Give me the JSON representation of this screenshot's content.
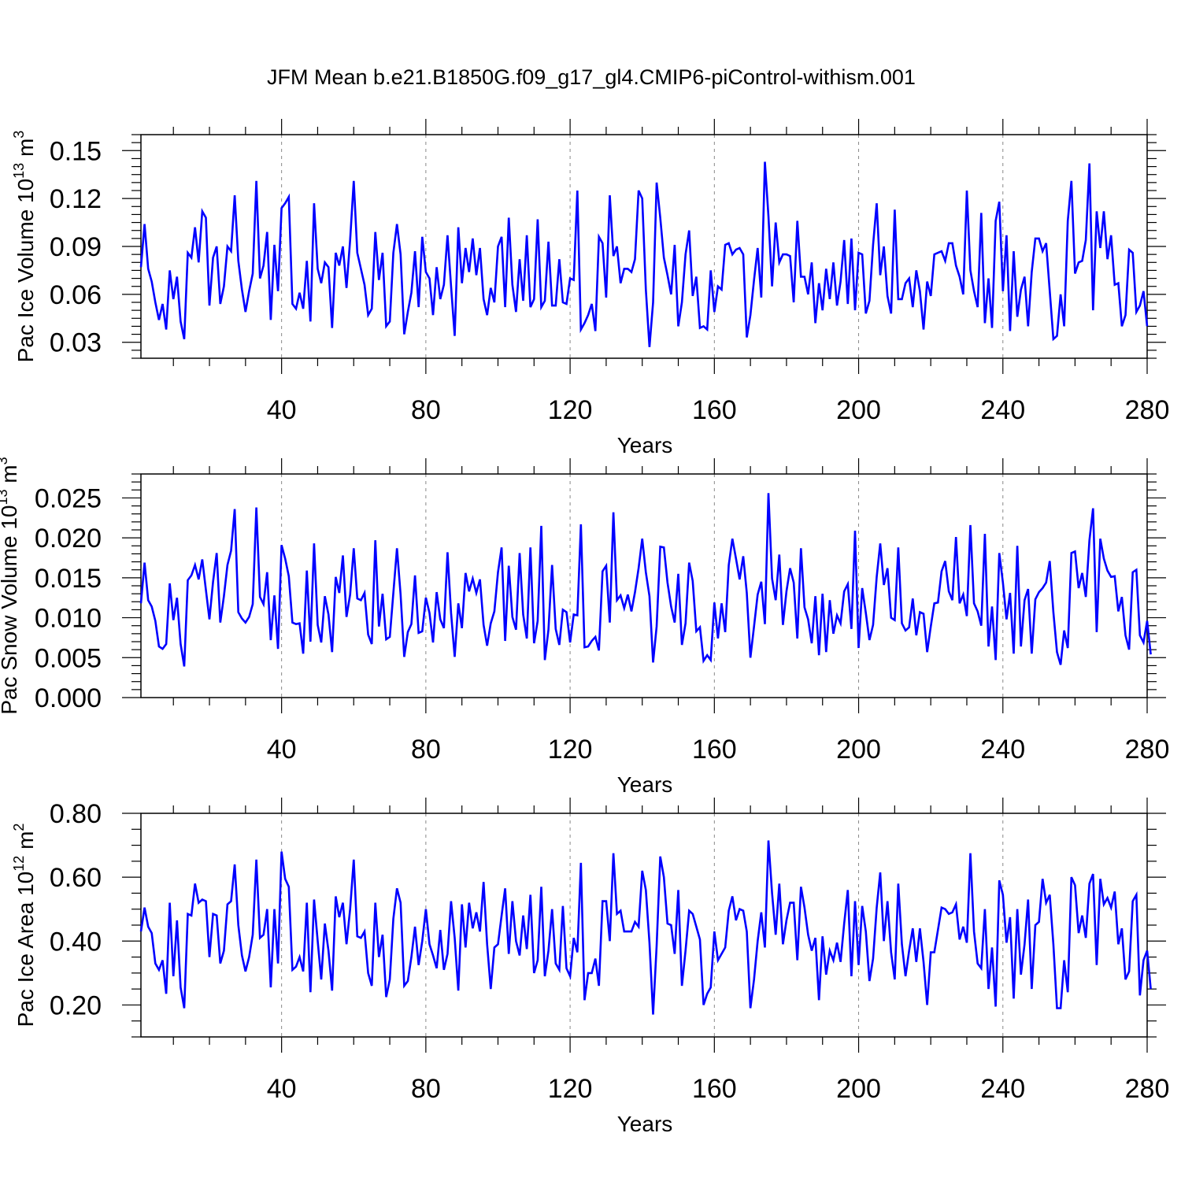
{
  "figure": {
    "title": "JFM Mean b.e21.B1850G.f09_g17_gl4.CMIP6-piControl-withism.001"
  },
  "chart_data": [
    {
      "type": "line",
      "xlabel": "Years",
      "ylabel": {
        "main": "Pac Ice Volume 10",
        "exp": "13",
        "unit": " m",
        "unit_exp": "3"
      },
      "xlim": [
        1,
        280
      ],
      "ylim": [
        0.02,
        0.16
      ],
      "xticks": [
        "40",
        "80",
        "120",
        "160",
        "200",
        "240",
        "280"
      ],
      "yticks": [
        "0.03",
        "0.06",
        "0.09",
        "0.12",
        "0.15"
      ],
      "grid": "dashed vertical lines at major x ticks",
      "line_color": "#0000ff",
      "series": [
        {
          "values": [
            0.077,
            0.104,
            0.076,
            0.068,
            0.055,
            0.044,
            0.054,
            0.038,
            0.075,
            0.057,
            0.071,
            0.043,
            0.032,
            0.086,
            0.083,
            0.102,
            0.08,
            0.112,
            0.108,
            0.053,
            0.083,
            0.09,
            0.054,
            0.065,
            0.09,
            0.087,
            0.122,
            0.081,
            0.063,
            0.049,
            0.062,
            0.073,
            0.131,
            0.07,
            0.078,
            0.099,
            0.044,
            0.091,
            0.062,
            0.114,
            0.117,
            0.121,
            0.054,
            0.051,
            0.061,
            0.051,
            0.081,
            0.043,
            0.117,
            0.076,
            0.067,
            0.08,
            0.077,
            0.039,
            0.086,
            0.078,
            0.09,
            0.064,
            0.094,
            0.131,
            0.086,
            0.076,
            0.066,
            0.047,
            0.051,
            0.099,
            0.069,
            0.086,
            0.04,
            0.043,
            0.086,
            0.104,
            0.085,
            0.035,
            0.049,
            0.061,
            0.087,
            0.052,
            0.096,
            0.074,
            0.07,
            0.047,
            0.077,
            0.057,
            0.066,
            0.097,
            0.065,
            0.034,
            0.102,
            0.067,
            0.089,
            0.074,
            0.095,
            0.072,
            0.089,
            0.057,
            0.047,
            0.064,
            0.055,
            0.09,
            0.096,
            0.052,
            0.108,
            0.066,
            0.049,
            0.082,
            0.056,
            0.097,
            0.052,
            0.057,
            0.107,
            0.052,
            0.056,
            0.093,
            0.053,
            0.053,
            0.082,
            0.055,
            0.054,
            0.07,
            0.069,
            0.125,
            0.038,
            0.042,
            0.047,
            0.054,
            0.037,
            0.096,
            0.092,
            0.058,
            0.122,
            0.084,
            0.09,
            0.067,
            0.076,
            0.076,
            0.074,
            0.082,
            0.125,
            0.12,
            0.063,
            0.027,
            0.055,
            0.13,
            0.108,
            0.083,
            0.072,
            0.06,
            0.091,
            0.04,
            0.055,
            0.085,
            0.1,
            0.059,
            0.071,
            0.039,
            0.04,
            0.038,
            0.075,
            0.049,
            0.065,
            0.063,
            0.091,
            0.092,
            0.085,
            0.088,
            0.089,
            0.085,
            0.033,
            0.047,
            0.069,
            0.089,
            0.058,
            0.143,
            0.109,
            0.065,
            0.105,
            0.08,
            0.085,
            0.085,
            0.084,
            0.055,
            0.106,
            0.071,
            0.071,
            0.06,
            0.08,
            0.042,
            0.067,
            0.05,
            0.076,
            0.057,
            0.08,
            0.053,
            0.068,
            0.094,
            0.054,
            0.095,
            0.05,
            0.086,
            0.085,
            0.048,
            0.056,
            0.091,
            0.117,
            0.072,
            0.09,
            0.059,
            0.048,
            0.113,
            0.057,
            0.057,
            0.067,
            0.07,
            0.052,
            0.075,
            0.062,
            0.038,
            0.068,
            0.059,
            0.085,
            0.086,
            0.087,
            0.081,
            0.092,
            0.092,
            0.078,
            0.071,
            0.06,
            0.125,
            0.075,
            0.062,
            0.052,
            0.111,
            0.042,
            0.07,
            0.039,
            0.106,
            0.118,
            0.062,
            0.097,
            0.037,
            0.087,
            0.046,
            0.063,
            0.071,
            0.04,
            0.074,
            0.095,
            0.095,
            0.087,
            0.092,
            0.062,
            0.032,
            0.034,
            0.06,
            0.04,
            0.106,
            0.131,
            0.073,
            0.08,
            0.081,
            0.094,
            0.142,
            0.05,
            0.112,
            0.089,
            0.112,
            0.082,
            0.097,
            0.066,
            0.067,
            0.04,
            0.047,
            0.088,
            0.086,
            0.049,
            0.053,
            0.062,
            0.04
          ]
        }
      ]
    },
    {
      "type": "line",
      "xlabel": "Years",
      "ylabel": {
        "main": "Pac Snow Volume 10",
        "exp": "13",
        "unit": " m",
        "unit_exp": "3"
      },
      "xlim": [
        1,
        280
      ],
      "ylim": [
        0.0,
        0.028
      ],
      "xticks": [
        "40",
        "80",
        "120",
        "160",
        "200",
        "240",
        "280"
      ],
      "yticks": [
        "0.000",
        "0.005",
        "0.010",
        "0.015",
        "0.020",
        "0.025"
      ],
      "grid": "dashed vertical lines at major x ticks",
      "line_color": "#0000ff",
      "series": [
        {
          "values": [
            0.0118,
            0.0169,
            0.0122,
            0.0114,
            0.0096,
            0.0064,
            0.0061,
            0.0067,
            0.0143,
            0.0097,
            0.0125,
            0.0067,
            0.0039,
            0.0147,
            0.0153,
            0.0166,
            0.0148,
            0.0173,
            0.0135,
            0.0098,
            0.0145,
            0.0181,
            0.0094,
            0.0127,
            0.0166,
            0.0184,
            0.0236,
            0.0107,
            0.0099,
            0.0094,
            0.0101,
            0.0117,
            0.0238,
            0.0126,
            0.0117,
            0.0157,
            0.0072,
            0.0128,
            0.0061,
            0.0191,
            0.0174,
            0.0152,
            0.0094,
            0.0092,
            0.0093,
            0.0055,
            0.0159,
            0.007,
            0.0193,
            0.0091,
            0.0069,
            0.0127,
            0.0104,
            0.0057,
            0.0151,
            0.0131,
            0.0178,
            0.0101,
            0.0129,
            0.0187,
            0.0124,
            0.0122,
            0.0131,
            0.0079,
            0.0067,
            0.0197,
            0.0089,
            0.013,
            0.0073,
            0.0076,
            0.0131,
            0.0187,
            0.0129,
            0.0051,
            0.0082,
            0.0092,
            0.0153,
            0.0081,
            0.0083,
            0.0125,
            0.0106,
            0.0069,
            0.0132,
            0.0098,
            0.0087,
            0.0182,
            0.0106,
            0.0051,
            0.0118,
            0.0087,
            0.0156,
            0.0133,
            0.0149,
            0.0131,
            0.0148,
            0.0091,
            0.0065,
            0.0093,
            0.0108,
            0.0157,
            0.0188,
            0.0071,
            0.0165,
            0.0101,
            0.0085,
            0.0181,
            0.0104,
            0.0074,
            0.0188,
            0.0068,
            0.0096,
            0.0215,
            0.0047,
            0.0085,
            0.0166,
            0.0086,
            0.0066,
            0.011,
            0.0107,
            0.0069,
            0.0104,
            0.0103,
            0.0217,
            0.0063,
            0.0064,
            0.0071,
            0.0076,
            0.0059,
            0.0158,
            0.0165,
            0.0094,
            0.0232,
            0.0122,
            0.0128,
            0.0112,
            0.0129,
            0.0108,
            0.0132,
            0.0162,
            0.0199,
            0.0157,
            0.0127,
            0.0044,
            0.0089,
            0.0189,
            0.0188,
            0.0144,
            0.0114,
            0.0094,
            0.0155,
            0.0066,
            0.0093,
            0.0169,
            0.0146,
            0.0083,
            0.0088,
            0.0046,
            0.0053,
            0.0047,
            0.0119,
            0.0074,
            0.0118,
            0.0082,
            0.0166,
            0.0199,
            0.0174,
            0.0148,
            0.0177,
            0.0131,
            0.005,
            0.0089,
            0.0129,
            0.0145,
            0.0092,
            0.0256,
            0.0149,
            0.0122,
            0.0179,
            0.0091,
            0.0133,
            0.0162,
            0.0144,
            0.0074,
            0.0187,
            0.0113,
            0.0098,
            0.0068,
            0.0127,
            0.0053,
            0.013,
            0.0057,
            0.0122,
            0.008,
            0.0103,
            0.0093,
            0.0133,
            0.0142,
            0.0086,
            0.0209,
            0.0062,
            0.0137,
            0.0106,
            0.0072,
            0.0091,
            0.0151,
            0.0193,
            0.0141,
            0.0162,
            0.01,
            0.0097,
            0.0188,
            0.0093,
            0.0084,
            0.0088,
            0.0124,
            0.0078,
            0.0107,
            0.0105,
            0.0057,
            0.0089,
            0.0118,
            0.0119,
            0.0158,
            0.0171,
            0.0133,
            0.0122,
            0.0201,
            0.0118,
            0.0129,
            0.0102,
            0.0216,
            0.0118,
            0.0108,
            0.009,
            0.0205,
            0.0064,
            0.0114,
            0.0047,
            0.0181,
            0.0144,
            0.0098,
            0.0131,
            0.0055,
            0.019,
            0.0064,
            0.0122,
            0.0136,
            0.0055,
            0.0123,
            0.0132,
            0.0137,
            0.0144,
            0.0171,
            0.0107,
            0.0057,
            0.0041,
            0.0084,
            0.0062,
            0.0181,
            0.0183,
            0.0137,
            0.0156,
            0.0126,
            0.0197,
            0.0237,
            0.0082,
            0.0199,
            0.0174,
            0.0159,
            0.0151,
            0.0152,
            0.0108,
            0.0126,
            0.0078,
            0.006,
            0.0157,
            0.016,
            0.0078,
            0.0069,
            0.0096,
            0.0054
          ]
        }
      ]
    },
    {
      "type": "line",
      "xlabel": "Years",
      "ylabel": {
        "main": "Pac Ice Area 10",
        "exp": "12",
        "unit": " m",
        "unit_exp": "2"
      },
      "xlim": [
        1,
        280
      ],
      "ylim": [
        0.1,
        0.8
      ],
      "xticks": [
        "40",
        "80",
        "120",
        "160",
        "200",
        "240",
        "280"
      ],
      "yticks": [
        "0.20",
        "0.40",
        "0.60",
        "0.80"
      ],
      "grid": "dashed vertical lines at major x ticks",
      "line_color": "#0000ff",
      "series": [
        {
          "values": [
            0.43,
            0.505,
            0.445,
            0.425,
            0.33,
            0.31,
            0.34,
            0.235,
            0.52,
            0.29,
            0.465,
            0.255,
            0.19,
            0.485,
            0.48,
            0.58,
            0.52,
            0.53,
            0.525,
            0.35,
            0.485,
            0.48,
            0.33,
            0.37,
            0.515,
            0.525,
            0.64,
            0.45,
            0.355,
            0.305,
            0.35,
            0.42,
            0.655,
            0.41,
            0.42,
            0.5,
            0.255,
            0.5,
            0.33,
            0.68,
            0.595,
            0.57,
            0.31,
            0.32,
            0.35,
            0.305,
            0.52,
            0.24,
            0.53,
            0.4,
            0.28,
            0.455,
            0.37,
            0.245,
            0.54,
            0.475,
            0.52,
            0.39,
            0.5,
            0.655,
            0.415,
            0.41,
            0.43,
            0.3,
            0.26,
            0.52,
            0.35,
            0.42,
            0.225,
            0.28,
            0.47,
            0.565,
            0.52,
            0.26,
            0.275,
            0.35,
            0.445,
            0.325,
            0.4,
            0.5,
            0.39,
            0.355,
            0.315,
            0.435,
            0.31,
            0.36,
            0.525,
            0.41,
            0.245,
            0.515,
            0.38,
            0.52,
            0.44,
            0.49,
            0.43,
            0.585,
            0.39,
            0.25,
            0.38,
            0.39,
            0.48,
            0.565,
            0.36,
            0.525,
            0.4,
            0.355,
            0.48,
            0.375,
            0.545,
            0.3,
            0.34,
            0.57,
            0.29,
            0.37,
            0.5,
            0.33,
            0.31,
            0.51,
            0.315,
            0.29,
            0.41,
            0.365,
            0.645,
            0.215,
            0.3,
            0.3,
            0.345,
            0.26,
            0.525,
            0.525,
            0.4,
            0.675,
            0.485,
            0.495,
            0.43,
            0.43,
            0.43,
            0.46,
            0.445,
            0.62,
            0.56,
            0.395,
            0.17,
            0.385,
            0.665,
            0.6,
            0.455,
            0.45,
            0.36,
            0.56,
            0.26,
            0.37,
            0.495,
            0.485,
            0.445,
            0.405,
            0.2,
            0.235,
            0.255,
            0.43,
            0.34,
            0.36,
            0.38,
            0.495,
            0.54,
            0.465,
            0.5,
            0.495,
            0.43,
            0.19,
            0.28,
            0.4,
            0.49,
            0.38,
            0.715,
            0.55,
            0.42,
            0.58,
            0.39,
            0.465,
            0.52,
            0.52,
            0.34,
            0.57,
            0.505,
            0.42,
            0.37,
            0.41,
            0.215,
            0.415,
            0.295,
            0.37,
            0.34,
            0.395,
            0.335,
            0.455,
            0.56,
            0.29,
            0.525,
            0.325,
            0.51,
            0.43,
            0.275,
            0.345,
            0.505,
            0.615,
            0.4,
            0.525,
            0.365,
            0.28,
            0.58,
            0.39,
            0.29,
            0.37,
            0.44,
            0.335,
            0.44,
            0.335,
            0.2,
            0.365,
            0.365,
            0.435,
            0.505,
            0.5,
            0.485,
            0.49,
            0.515,
            0.405,
            0.445,
            0.395,
            0.675,
            0.43,
            0.33,
            0.315,
            0.5,
            0.25,
            0.38,
            0.195,
            0.59,
            0.545,
            0.395,
            0.475,
            0.22,
            0.5,
            0.295,
            0.39,
            0.53,
            0.25,
            0.45,
            0.46,
            0.595,
            0.52,
            0.545,
            0.39,
            0.19,
            0.19,
            0.34,
            0.24,
            0.6,
            0.575,
            0.425,
            0.48,
            0.41,
            0.58,
            0.61,
            0.325,
            0.595,
            0.515,
            0.535,
            0.505,
            0.555,
            0.39,
            0.44,
            0.28,
            0.305,
            0.525,
            0.545,
            0.23,
            0.34,
            0.37,
            0.25
          ]
        }
      ]
    }
  ]
}
